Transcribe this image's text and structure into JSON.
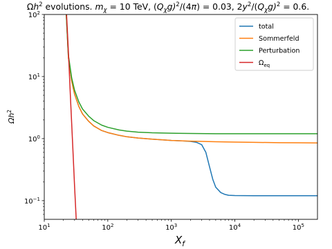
{
  "chart_data": {
    "type": "line",
    "title": "Ωh² evolutions. m_χ = 10 TeV, (Q_χ g)²/(4π) = 0.03, 2y²/(Q_χ g)² = 0.6.",
    "title_parts": {
      "t1": "Ω",
      "t2": "h",
      "t3": "2",
      "t4": " evolutions. ",
      "t5": "m",
      "t6": "χ",
      "t7": " = 10 TeV, (",
      "t8": "Q",
      "t9": "χ",
      "t10": "g)",
      "t11": "2",
      "t12": "/(4",
      "t13": "π",
      "t14": ") = 0.03, 2",
      "t15": "y",
      "t16": "2",
      "t17": "/(",
      "t18": "Q",
      "t19": "χ",
      "t20": "g)",
      "t21": "2",
      "t22": " = 0.6."
    },
    "xlabel": "X_f",
    "xlabel_parts": {
      "main": "X",
      "sub": "f"
    },
    "ylabel": "Ωh²",
    "ylabel_parts": {
      "main": "Ωh",
      "sup": "2"
    },
    "xscale": "log",
    "yscale": "log",
    "xlim": [
      10,
      200000
    ],
    "ylim": [
      0.05,
      100
    ],
    "xticks": [
      {
        "value": 10,
        "base": "10",
        "exp": "1"
      },
      {
        "value": 100,
        "base": "10",
        "exp": "2"
      },
      {
        "value": 1000,
        "base": "10",
        "exp": "3"
      },
      {
        "value": 10000,
        "base": "10",
        "exp": "4"
      },
      {
        "value": 100000,
        "base": "10",
        "exp": "5"
      }
    ],
    "yticks": [
      {
        "value": 0.1,
        "base": "10",
        "exp": "−1"
      },
      {
        "value": 1,
        "base": "10",
        "exp": "0"
      },
      {
        "value": 10,
        "base": "10",
        "exp": "1"
      },
      {
        "value": 100,
        "base": "10",
        "exp": "2"
      }
    ],
    "grid": false,
    "legend_position": "top-right",
    "series": [
      {
        "name": "total",
        "color": "#1f77b4",
        "x": [
          22,
          24,
          27,
          30,
          35,
          40,
          50,
          60,
          80,
          100,
          150,
          200,
          300,
          500,
          800,
          1000,
          1500,
          2000,
          2500,
          3000,
          3500,
          4000,
          4500,
          5000,
          6000,
          7000,
          8000,
          10000,
          20000,
          50000,
          100000,
          200000
        ],
        "y": [
          120,
          20,
          8.5,
          5.2,
          3.3,
          2.5,
          1.9,
          1.6,
          1.35,
          1.25,
          1.13,
          1.07,
          1.02,
          0.98,
          0.95,
          0.935,
          0.92,
          0.9,
          0.87,
          0.8,
          0.6,
          0.35,
          0.22,
          0.165,
          0.135,
          0.126,
          0.122,
          0.121,
          0.12,
          0.12,
          0.12,
          0.12
        ]
      },
      {
        "name": "Sommerfeld",
        "color": "#ff7f0e",
        "x": [
          22,
          24,
          27,
          30,
          35,
          40,
          50,
          60,
          80,
          100,
          150,
          200,
          300,
          500,
          800,
          1000,
          1500,
          2000,
          3000,
          5000,
          10000,
          20000,
          50000,
          100000,
          200000
        ],
        "y": [
          120,
          20,
          8.5,
          5.2,
          3.3,
          2.5,
          1.9,
          1.6,
          1.35,
          1.25,
          1.13,
          1.07,
          1.02,
          0.98,
          0.95,
          0.935,
          0.92,
          0.91,
          0.9,
          0.89,
          0.88,
          0.87,
          0.86,
          0.855,
          0.85
        ]
      },
      {
        "name": "Perturbation",
        "color": "#2ca02c",
        "x": [
          22,
          24,
          27,
          30,
          35,
          40,
          50,
          60,
          80,
          100,
          150,
          200,
          300,
          500,
          1000,
          2000,
          5000,
          10000,
          50000,
          200000
        ],
        "y": [
          120,
          22,
          9.5,
          6,
          3.9,
          3,
          2.3,
          1.95,
          1.65,
          1.52,
          1.38,
          1.32,
          1.27,
          1.24,
          1.22,
          1.21,
          1.2,
          1.2,
          1.2,
          1.2
        ]
      },
      {
        "name": "Ω_eq",
        "name_parts": {
          "main": "Ω",
          "sub": "eq"
        },
        "color": "#d62728",
        "x": [
          22,
          24,
          26,
          28,
          30,
          32
        ],
        "y": [
          150,
          25,
          4,
          0.8,
          0.17,
          0.045
        ]
      }
    ]
  }
}
